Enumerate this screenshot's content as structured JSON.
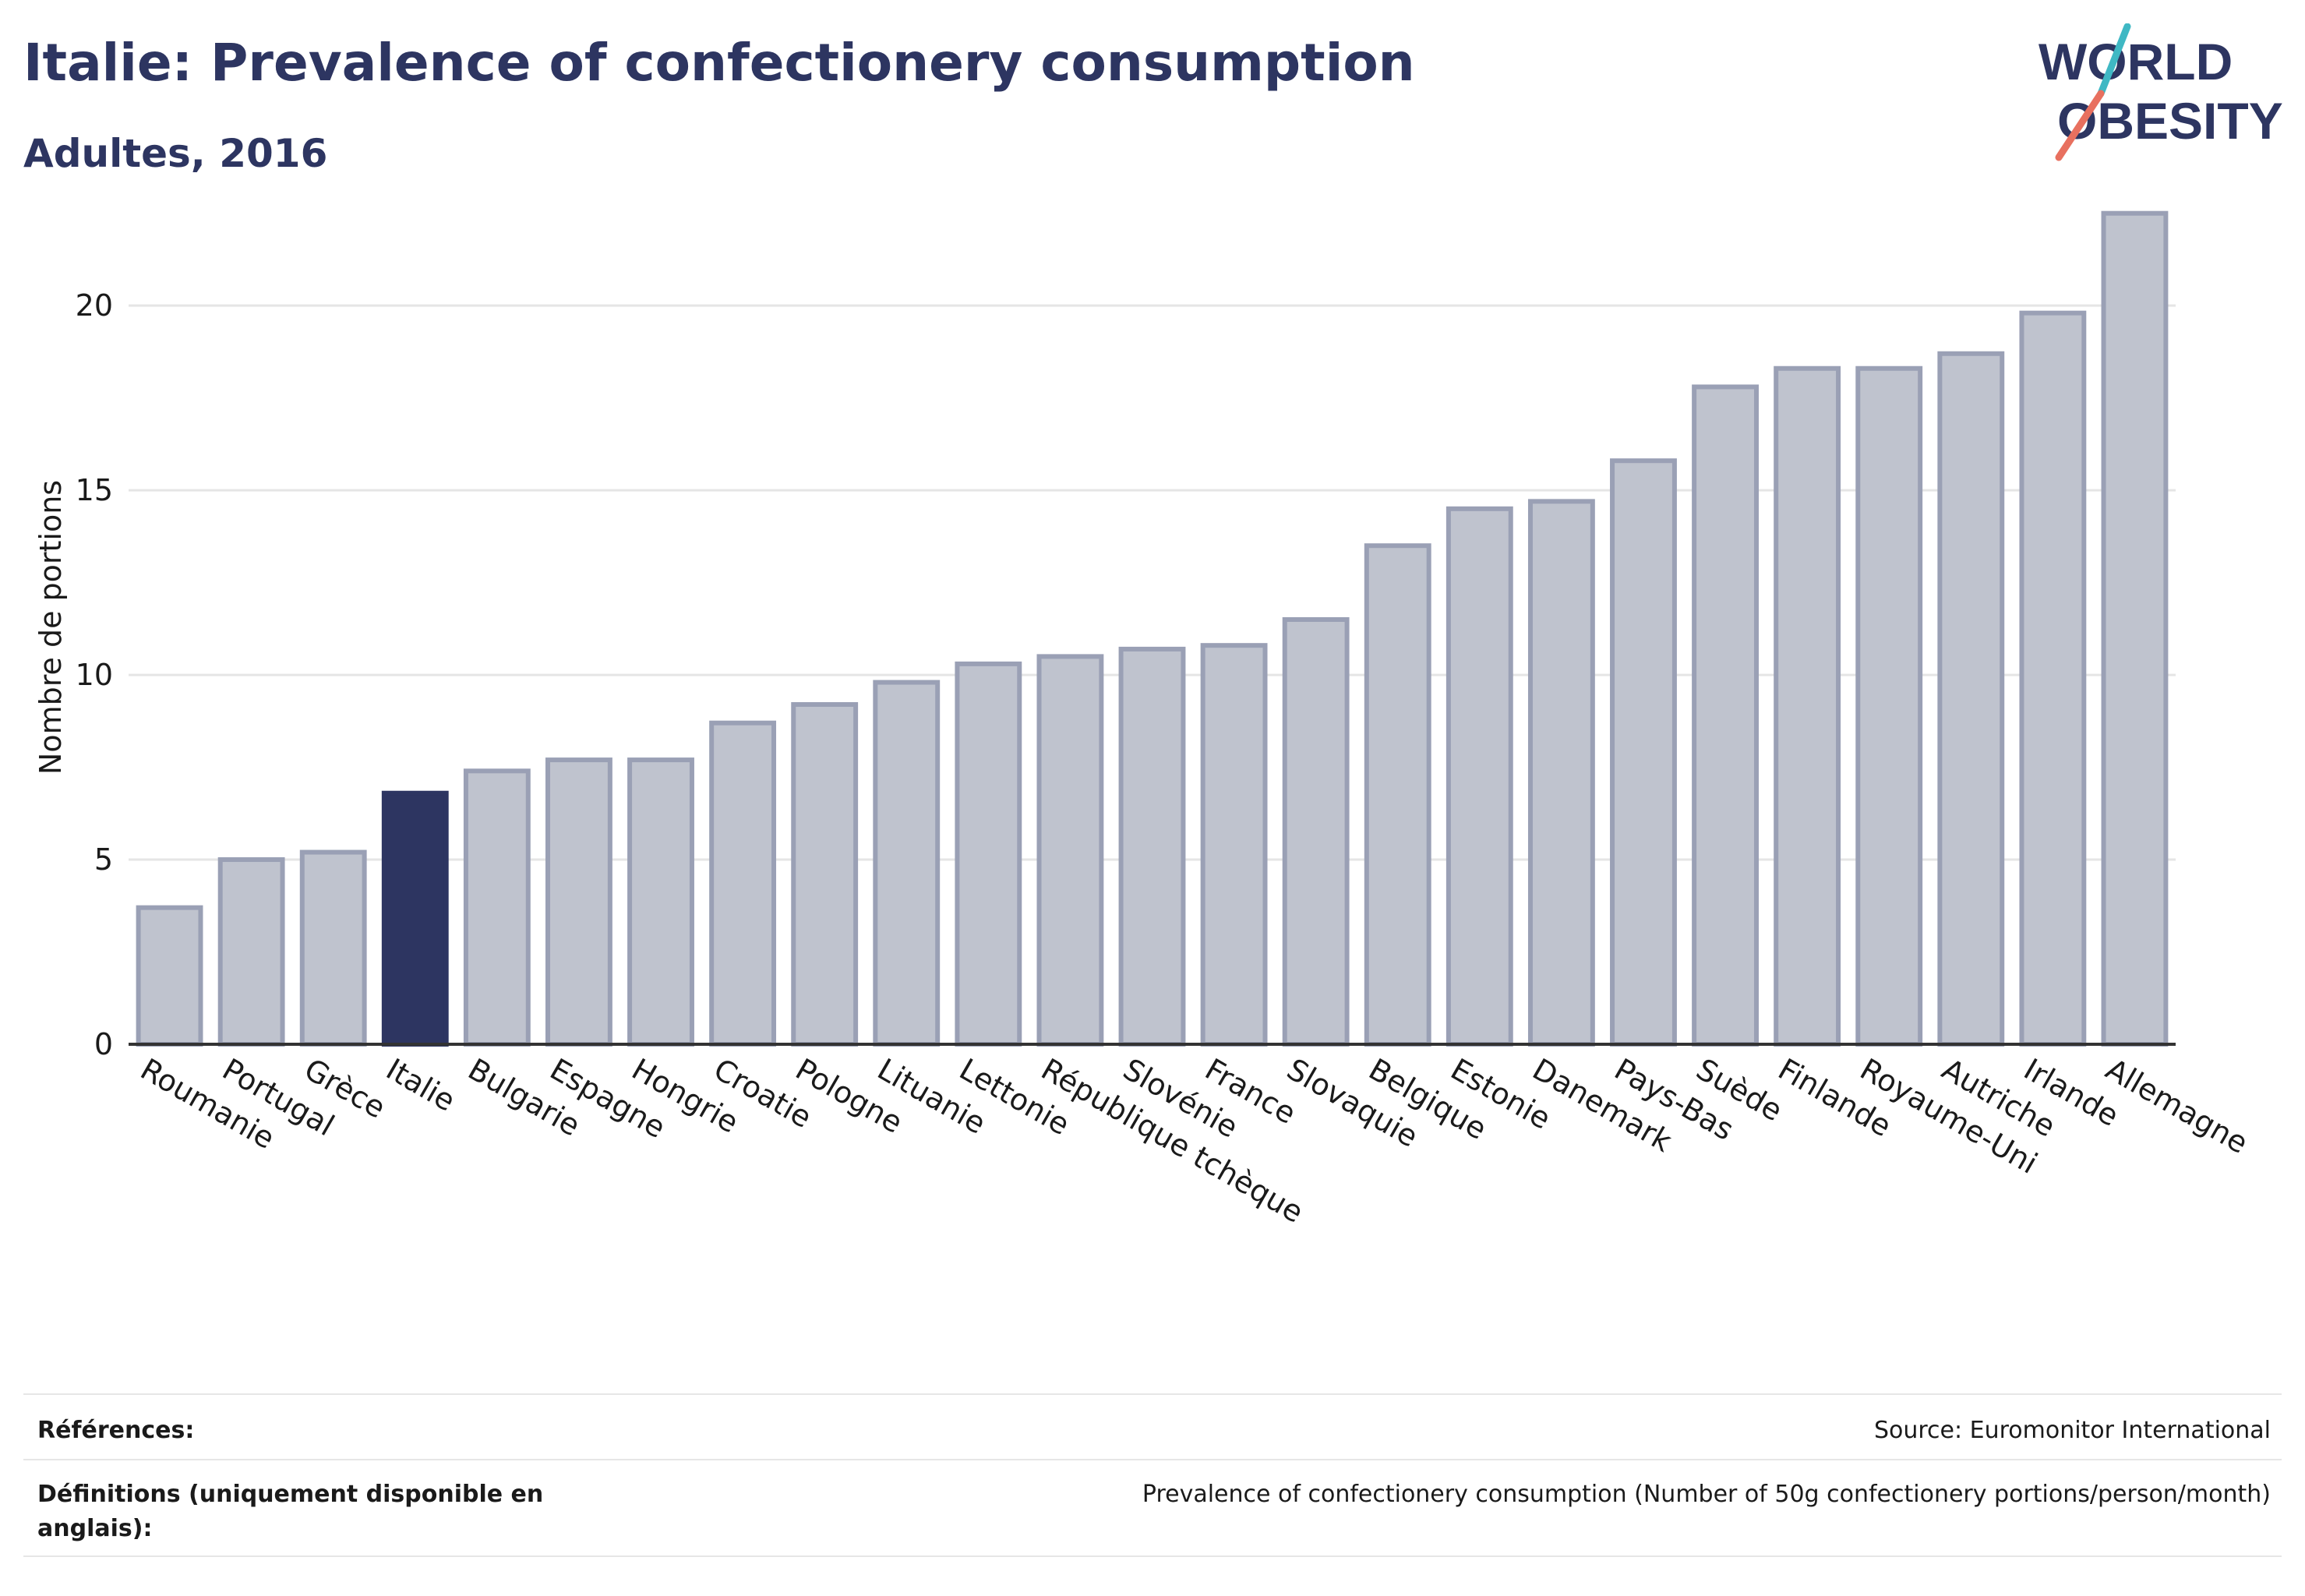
{
  "header": {
    "title": "Italie: Prevalence of confectionery consumption",
    "subtitle": "Adultes, 2016"
  },
  "logo": {
    "line1": "WORLD",
    "line2": "OBESITY",
    "colors": {
      "text": "#2d3561",
      "slash_top": "#3fb8c4",
      "slash_bottom": "#e8705f"
    }
  },
  "chart_data": {
    "type": "bar",
    "ylabel": "Nombre de portions",
    "xlabel": "",
    "ylim": [
      0,
      23
    ],
    "yticks": [
      0,
      5,
      10,
      15,
      20
    ],
    "grid": true,
    "highlight": "Italie",
    "colors": {
      "bar": "#bfc3ce",
      "bar_stroke": "#9aa0b5",
      "highlight": "#2d3561",
      "grid": "#e5e5e5",
      "axis": "#333333"
    },
    "categories": [
      "Roumanie",
      "Portugal",
      "Grèce",
      "Italie",
      "Bulgarie",
      "Espagne",
      "Hongrie",
      "Croatie",
      "Pologne",
      "Lituanie",
      "Lettonie",
      "République tchèque",
      "Slovénie",
      "France",
      "Slovaquie",
      "Belgique",
      "Estonie",
      "Danemark",
      "Pays-Bas",
      "Suède",
      "Finlande",
      "Royaume-Uni",
      "Autriche",
      "Irlande",
      "Allemagne"
    ],
    "values": [
      3.7,
      5.0,
      5.2,
      6.8,
      7.4,
      7.7,
      7.7,
      8.7,
      9.2,
      9.8,
      10.3,
      10.5,
      10.7,
      10.8,
      11.5,
      13.5,
      14.5,
      14.7,
      15.8,
      17.8,
      18.3,
      18.3,
      18.7,
      19.8,
      22.5
    ]
  },
  "footer": {
    "references_label": "Références:",
    "references_value": "Source: Euromonitor International",
    "definitions_label": "Définitions (uniquement disponible en anglais):",
    "definitions_value": "Prevalence of confectionery consumption (Number of 50g confectionery portions/person/month)"
  }
}
